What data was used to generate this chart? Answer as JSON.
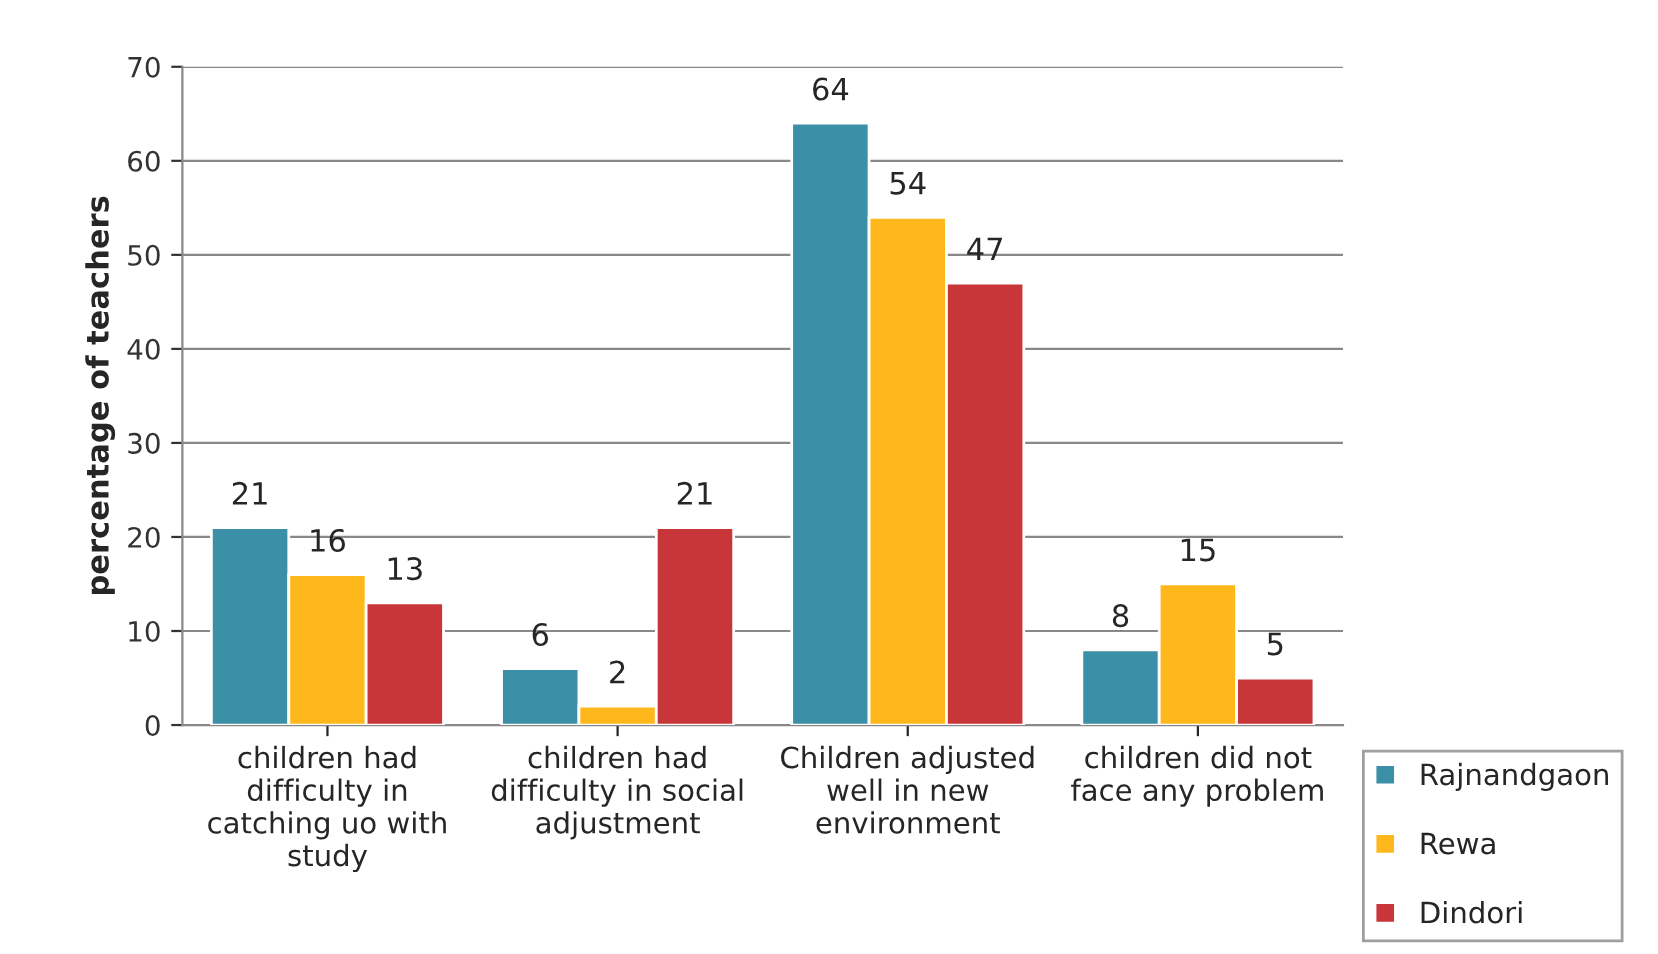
{
  "chart_data": {
    "type": "bar",
    "ylabel": "percentage of teachers",
    "categories": [
      "children had\ndifficulty in\ncatching uo with\nstudy",
      "children had\ndifficulty in social\nadjustment",
      "Children adjusted\nwell in new\nenvironment",
      "children did not\nface any problem"
    ],
    "series": [
      {
        "name": "Rajnandgaon",
        "color": "#3b8fa6",
        "values": [
          21,
          6,
          64,
          8
        ]
      },
      {
        "name": "Rewa",
        "color": "#ffb81c",
        "values": [
          16,
          2,
          54,
          15
        ]
      },
      {
        "name": "Dindori",
        "color": "#c8363a",
        "values": [
          13,
          21,
          47,
          5
        ]
      }
    ],
    "ylim": [
      0,
      70
    ],
    "yticks": [
      0,
      10,
      20,
      30,
      40,
      50,
      60,
      70
    ],
    "grid": "y",
    "legend": "bottom right",
    "data_labels": true
  }
}
